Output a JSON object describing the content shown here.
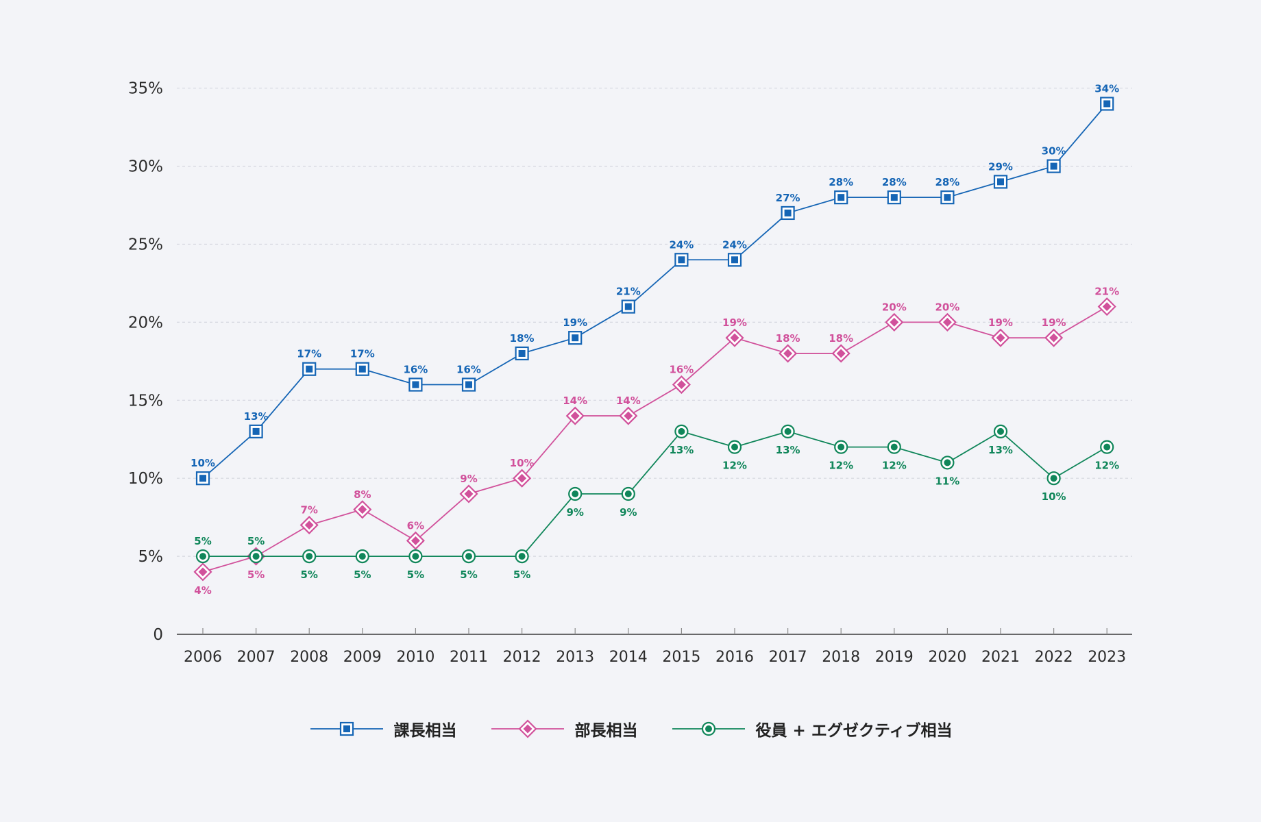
{
  "chart_data": {
    "type": "line",
    "categories": [
      "2006",
      "2007",
      "2008",
      "2009",
      "2010",
      "2011",
      "2012",
      "2013",
      "2014",
      "2015",
      "2016",
      "2017",
      "2018",
      "2019",
      "2020",
      "2021",
      "2022",
      "2023"
    ],
    "y_ticks": [
      "0",
      "5%",
      "10%",
      "15%",
      "20%",
      "25%",
      "30%",
      "35%"
    ],
    "ylim": [
      0,
      35
    ],
    "grid": true,
    "legend_position": "bottom",
    "series": [
      {
        "name": "課長相当",
        "color": "#1565b5",
        "marker": "square",
        "values": [
          10,
          13,
          17,
          17,
          16,
          16,
          18,
          19,
          21,
          24,
          24,
          27,
          28,
          28,
          28,
          29,
          30,
          34
        ],
        "labels": [
          "10%",
          "13%",
          "17%",
          "17%",
          "16%",
          "16%",
          "18%",
          "19%",
          "21%",
          "24%",
          "24%",
          "27%",
          "28%",
          "28%",
          "28%",
          "29%",
          "30%",
          "34%"
        ]
      },
      {
        "name": "部長相当",
        "color": "#d1519b",
        "marker": "diamond",
        "values": [
          4,
          5,
          7,
          8,
          6,
          9,
          10,
          14,
          14,
          16,
          19,
          18,
          18,
          20,
          20,
          19,
          19,
          21
        ],
        "labels": [
          "4%",
          "5%",
          "7%",
          "8%",
          "6%",
          "9%",
          "10%",
          "14%",
          "14%",
          "16%",
          "19%",
          "18%",
          "18%",
          "20%",
          "20%",
          "19%",
          "19%",
          "21%"
        ]
      },
      {
        "name": "役員 + エグゼクティブ相当",
        "color": "#10865a",
        "marker": "circle",
        "values": [
          5,
          5,
          5,
          5,
          5,
          5,
          5,
          9,
          9,
          13,
          12,
          13,
          12,
          12,
          11,
          13,
          10,
          12
        ],
        "labels": [
          "5%",
          "5%",
          "5%",
          "5%",
          "5%",
          "5%",
          "5%",
          "9%",
          "9%",
          "13%",
          "12%",
          "13%",
          "12%",
          "12%",
          "11%",
          "13%",
          "10%",
          "12%"
        ]
      }
    ]
  }
}
